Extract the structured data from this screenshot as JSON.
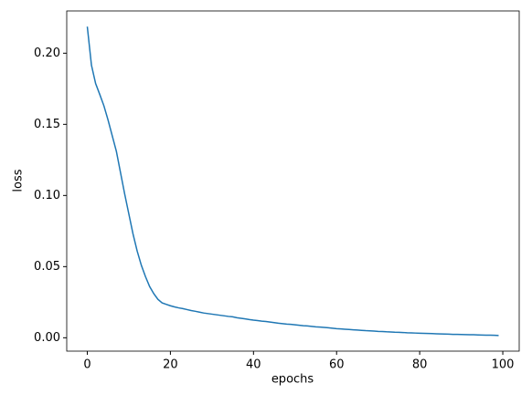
{
  "chart_data": {
    "type": "line",
    "x_label": "epochs",
    "y_label": "loss",
    "x": [
      0,
      1,
      2,
      3,
      4,
      5,
      6,
      7,
      8,
      9,
      10,
      11,
      12,
      13,
      14,
      15,
      16,
      17,
      18,
      19,
      20,
      21,
      22,
      23,
      24,
      25,
      26,
      27,
      28,
      29,
      30,
      31,
      32,
      33,
      34,
      35,
      36,
      37,
      38,
      39,
      40,
      41,
      42,
      43,
      44,
      45,
      46,
      47,
      48,
      49,
      50,
      51,
      52,
      53,
      54,
      55,
      56,
      57,
      58,
      59,
      60,
      61,
      62,
      63,
      64,
      65,
      66,
      67,
      68,
      69,
      70,
      71,
      72,
      73,
      74,
      75,
      76,
      77,
      78,
      79,
      80,
      81,
      82,
      83,
      84,
      85,
      86,
      87,
      88,
      89,
      90,
      91,
      92,
      93,
      94,
      95,
      96,
      97,
      98,
      99
    ],
    "series": [
      {
        "color": "#1f77b4",
        "values": [
          0.2187,
          0.1916,
          0.1787,
          0.171,
          0.163,
          0.153,
          0.142,
          0.131,
          0.116,
          0.101,
          0.087,
          0.073,
          0.061,
          0.051,
          0.043,
          0.036,
          0.031,
          0.027,
          0.0245,
          0.0235,
          0.0225,
          0.0217,
          0.021,
          0.0205,
          0.0198,
          0.0191,
          0.0186,
          0.018,
          0.0174,
          0.017,
          0.0166,
          0.0162,
          0.0158,
          0.0154,
          0.015,
          0.0147,
          0.0141,
          0.0137,
          0.0133,
          0.0128,
          0.0124,
          0.0121,
          0.0117,
          0.0114,
          0.011,
          0.0106,
          0.0102,
          0.0099,
          0.0096,
          0.0094,
          0.0091,
          0.0088,
          0.0085,
          0.0083,
          0.008,
          0.0077,
          0.0075,
          0.0073,
          0.007,
          0.0067,
          0.0064,
          0.0062,
          0.006,
          0.0058,
          0.0056,
          0.0054,
          0.0052,
          0.005,
          0.0049,
          0.0047,
          0.0045,
          0.0044,
          0.0042,
          0.0041,
          0.0039,
          0.0038,
          0.0037,
          0.0035,
          0.0034,
          0.0033,
          0.0032,
          0.0031,
          0.003,
          0.0029,
          0.0028,
          0.0027,
          0.0026,
          0.0025,
          0.0024,
          0.0024,
          0.0023,
          0.0022,
          0.0021,
          0.0021,
          0.002,
          0.0019,
          0.0018,
          0.0018,
          0.0017,
          0.0016
        ]
      }
    ],
    "xlim": [
      -4.95,
      103.95
    ],
    "ylim": [
      -0.0094,
      0.2297
    ],
    "xticks": [
      0,
      20,
      40,
      60,
      80,
      100
    ],
    "yticks": [
      {
        "value": 0,
        "label": "0.00"
      },
      {
        "value": 0.05,
        "label": "0.05"
      },
      {
        "value": 0.1,
        "label": "0.10"
      },
      {
        "value": 0.15,
        "label": "0.15"
      },
      {
        "value": 0.2,
        "label": "0.20"
      }
    ]
  }
}
